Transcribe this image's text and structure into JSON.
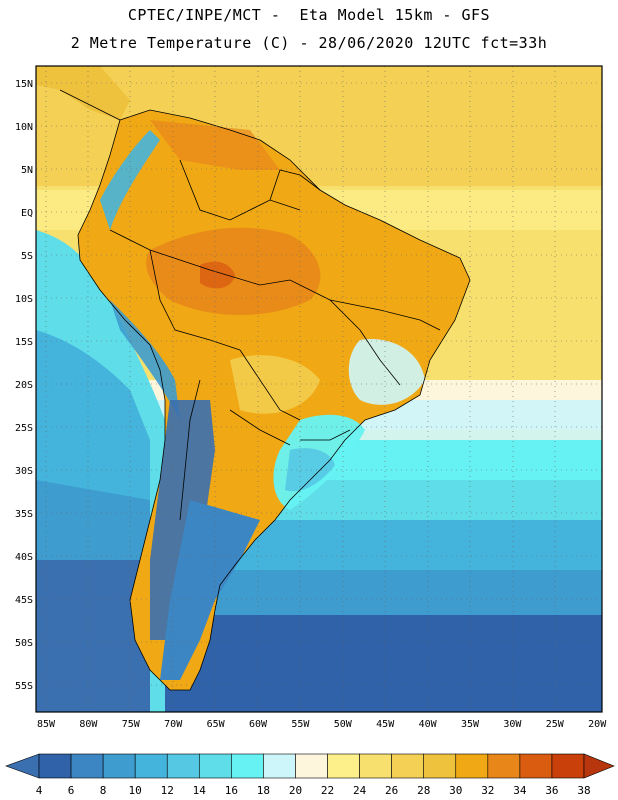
{
  "header": {
    "title_line1": "CPTEC/INPE/MCT -  Eta Model 15km - GFS",
    "title_line2": "2 Metre Temperature (C) - 28/06/2020 12UTC fct=33h"
  },
  "map": {
    "lat_labels": [
      "15N",
      "10N",
      "5N",
      "EQ",
      "5S",
      "10S",
      "15S",
      "20S",
      "25S",
      "30S",
      "35S",
      "40S",
      "45S",
      "50S",
      "55S"
    ],
    "lon_labels": [
      "85W",
      "80W",
      "75W",
      "70W",
      "65W",
      "60W",
      "55W",
      "50W",
      "45W",
      "40W",
      "35W",
      "30W",
      "25W",
      "20W"
    ],
    "lat_range": [
      17.5,
      -57.5
    ],
    "lon_range": [
      -85.5,
      -20
    ]
  },
  "colorbar": {
    "levels": [
      "4",
      "6",
      "8",
      "10",
      "12",
      "14",
      "16",
      "18",
      "20",
      "22",
      "24",
      "26",
      "28",
      "30",
      "32",
      "34",
      "36",
      "38"
    ],
    "colors": [
      "#3a6fb0",
      "#2f62a8",
      "#3c86c3",
      "#3e9ccf",
      "#45b4dc",
      "#55c8e4",
      "#5fdde8",
      "#66f2f2",
      "#cdf6fa",
      "#fdf6dc",
      "#fdf08a",
      "#f8e06e",
      "#f4d155",
      "#efc23e",
      "#f0a814",
      "#e8861a",
      "#da5c10",
      "#c9400a",
      "#b8360d"
    ],
    "under_color": "#3a6fb0",
    "over_color": "#b8360d"
  }
}
